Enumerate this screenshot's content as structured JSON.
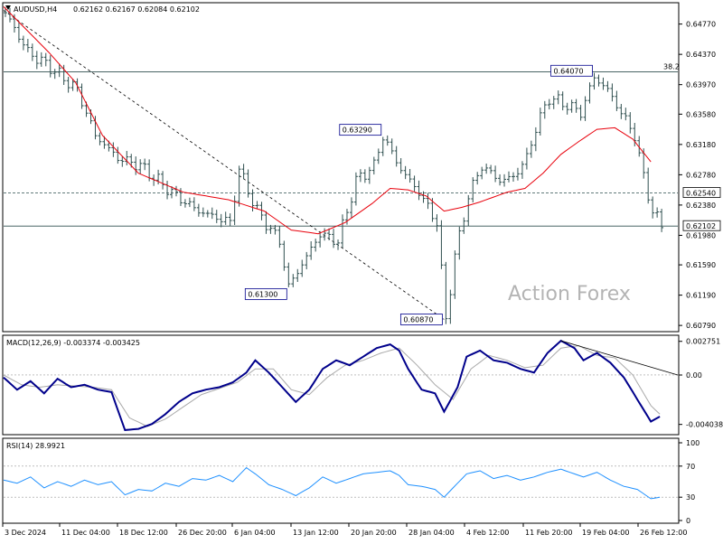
{
  "header": {
    "symbol": "AUDUSD,H4",
    "ohlc": "0.62162 0.62167 0.62084 0.62102"
  },
  "watermark": "Action Forex",
  "colors": {
    "price": "#2f4f4f",
    "ma": "#e8000b",
    "macd_main": "#00008b",
    "macd_signal": "#a9a9a9",
    "rsi": "#1e90ff",
    "level": "#2f4f4f",
    "border": "#000000"
  },
  "chart_data": [
    {
      "type": "candlestick",
      "title": "AUDUSD,H4",
      "ylim": [
        0.6072,
        0.6504
      ],
      "y_ticks": [
        "0.64770",
        "0.64370",
        "0.63970",
        "0.63580",
        "0.63180",
        "0.62780",
        "0.62380",
        "0.61980",
        "0.61590",
        "0.61190",
        "0.60790"
      ],
      "x_ticks": [
        "3 Dec 2024",
        "11 Dec 04:00",
        "18 Dec 12:00",
        "26 Dec 20:00",
        "6 Jan 04:00",
        "13 Jan 12:00",
        "20 Jan 20:00",
        "28 Jan 04:00",
        "4 Feb 12:00",
        "11 Feb 20:00",
        "19 Feb 04:00",
        "26 Feb 12:00"
      ],
      "price_path": [
        [
          0,
          0.6492
        ],
        [
          5,
          0.644
        ],
        [
          10,
          0.642
        ],
        [
          16,
          0.639
        ],
        [
          20,
          0.633
        ],
        [
          25,
          0.63
        ],
        [
          30,
          0.629
        ],
        [
          38,
          0.625
        ],
        [
          43,
          0.623
        ],
        [
          50,
          0.6215
        ],
        [
          52,
          0.6285
        ],
        [
          56,
          0.623
        ],
        [
          61,
          0.619
        ],
        [
          63,
          0.613
        ],
        [
          66,
          0.616
        ],
        [
          70,
          0.62
        ],
        [
          74,
          0.619
        ],
        [
          76,
          0.623
        ],
        [
          78,
          0.627
        ],
        [
          82,
          0.629
        ],
        [
          84,
          0.6329
        ],
        [
          88,
          0.6285
        ],
        [
          92,
          0.6255
        ],
        [
          96,
          0.6215
        ],
        [
          98,
          0.6087
        ],
        [
          100,
          0.617
        ],
        [
          103,
          0.625
        ],
        [
          106,
          0.629
        ],
        [
          110,
          0.627
        ],
        [
          113,
          0.6275
        ],
        [
          116,
          0.63
        ],
        [
          118,
          0.634
        ],
        [
          121,
          0.638
        ],
        [
          125,
          0.637
        ],
        [
          128,
          0.636
        ],
        [
          131,
          0.6407
        ],
        [
          134,
          0.639
        ],
        [
          137,
          0.636
        ],
        [
          140,
          0.633
        ],
        [
          142,
          0.6275
        ],
        [
          144,
          0.623
        ],
        [
          146,
          0.621
        ]
      ],
      "ma_path": [
        [
          0,
          0.65
        ],
        [
          10,
          0.644
        ],
        [
          16,
          0.64
        ],
        [
          22,
          0.633
        ],
        [
          30,
          0.628
        ],
        [
          40,
          0.6255
        ],
        [
          50,
          0.6245
        ],
        [
          58,
          0.623
        ],
        [
          64,
          0.6205
        ],
        [
          70,
          0.62
        ],
        [
          76,
          0.6215
        ],
        [
          82,
          0.624
        ],
        [
          86,
          0.626
        ],
        [
          90,
          0.6258
        ],
        [
          94,
          0.625
        ],
        [
          98,
          0.623
        ],
        [
          102,
          0.6235
        ],
        [
          106,
          0.6242
        ],
        [
          112,
          0.6255
        ],
        [
          116,
          0.626
        ],
        [
          120,
          0.628
        ],
        [
          124,
          0.6305
        ],
        [
          128,
          0.6322
        ],
        [
          132,
          0.6338
        ],
        [
          136,
          0.634
        ],
        [
          140,
          0.6325
        ],
        [
          144,
          0.6295
        ]
      ],
      "horizontal_lines": [
        {
          "value": 0.6414,
          "label": "38.2",
          "style": "solid"
        },
        {
          "value": 0.6254,
          "label": "0.62540",
          "style": "dashed"
        },
        {
          "value": 0.62102,
          "label": "0.62102",
          "style": "solid"
        }
      ],
      "trendlines": [
        {
          "from": [
            0,
            0.6495
          ],
          "to": [
            98,
            0.6087
          ],
          "style": "dashed"
        }
      ],
      "annotations": [
        {
          "text": "0.61300",
          "at": [
            63,
            0.613
          ]
        },
        {
          "text": "0.63290",
          "at": [
            84,
            0.6329
          ]
        },
        {
          "text": "0.60870",
          "at": [
            98,
            0.6087
          ]
        },
        {
          "text": "0.64070",
          "at": [
            131,
            0.6407
          ]
        }
      ]
    },
    {
      "type": "line",
      "title": "MACD(12,26,9) -0.003374 -0.003425",
      "ylim": [
        -0.0048,
        0.0031
      ],
      "y_ticks": [
        "0.002751",
        "0.00",
        "-0.004038"
      ],
      "series": [
        {
          "values": [
            [
              0,
              -0.0002
            ],
            [
              3,
              -0.0012
            ],
            [
              6,
              -0.0005
            ],
            [
              9,
              -0.0015
            ],
            [
              12,
              -0.0003
            ],
            [
              15,
              -0.001
            ],
            [
              18,
              -0.0008
            ],
            [
              21,
              -0.0012
            ],
            [
              24,
              -0.0014
            ],
            [
              27,
              -0.0045
            ],
            [
              30,
              -0.0044
            ],
            [
              33,
              -0.004
            ],
            [
              36,
              -0.0032
            ],
            [
              39,
              -0.0022
            ],
            [
              42,
              -0.0015
            ],
            [
              45,
              -0.0012
            ],
            [
              48,
              -0.001
            ],
            [
              51,
              -0.0006
            ],
            [
              54,
              0.0002
            ],
            [
              56,
              0.0012
            ],
            [
              59,
              0.0002
            ],
            [
              62,
              -0.001
            ],
            [
              65,
              -0.0022
            ],
            [
              68,
              -0.0012
            ],
            [
              71,
              0.0005
            ],
            [
              74,
              0.0012
            ],
            [
              77,
              0.0008
            ],
            [
              80,
              0.0015
            ],
            [
              83,
              0.0022
            ],
            [
              86,
              0.0025
            ],
            [
              88,
              0.002
            ],
            [
              90,
              0.0005
            ],
            [
              93,
              -0.0012
            ],
            [
              96,
              -0.0015
            ],
            [
              98,
              -0.003
            ],
            [
              101,
              -0.001
            ],
            [
              103,
              0.0015
            ],
            [
              106,
              0.002
            ],
            [
              109,
              0.0012
            ],
            [
              112,
              0.001
            ],
            [
              115,
              0.0005
            ],
            [
              118,
              0.0002
            ],
            [
              121,
              0.0018
            ],
            [
              124,
              0.0028
            ],
            [
              127,
              0.0022
            ],
            [
              129,
              0.0012
            ],
            [
              132,
              0.0018
            ],
            [
              135,
              0.001
            ],
            [
              138,
              -0.0002
            ],
            [
              141,
              -0.002
            ],
            [
              144,
              -0.0038
            ],
            [
              146,
              -0.0034
            ]
          ]
        },
        {
          "values": [
            [
              0,
              0.0
            ],
            [
              4,
              -0.0008
            ],
            [
              8,
              -0.001
            ],
            [
              12,
              -0.0008
            ],
            [
              16,
              -0.0009
            ],
            [
              20,
              -0.001
            ],
            [
              24,
              -0.0012
            ],
            [
              28,
              -0.0035
            ],
            [
              32,
              -0.0042
            ],
            [
              36,
              -0.0036
            ],
            [
              40,
              -0.0026
            ],
            [
              44,
              -0.0016
            ],
            [
              48,
              -0.0011
            ],
            [
              52,
              -0.0006
            ],
            [
              56,
              0.0005
            ],
            [
              60,
              0.0005
            ],
            [
              64,
              -0.0012
            ],
            [
              68,
              -0.0016
            ],
            [
              72,
              -0.0002
            ],
            [
              76,
              0.0008
            ],
            [
              80,
              0.0012
            ],
            [
              84,
              0.0018
            ],
            [
              88,
              0.0022
            ],
            [
              92,
              0.0008
            ],
            [
              96,
              -0.0008
            ],
            [
              100,
              -0.002
            ],
            [
              104,
              0.0005
            ],
            [
              108,
              0.0016
            ],
            [
              112,
              0.0012
            ],
            [
              116,
              0.0006
            ],
            [
              120,
              0.0008
            ],
            [
              124,
              0.0022
            ],
            [
              128,
              0.0024
            ],
            [
              132,
              0.0016
            ],
            [
              136,
              0.0014
            ],
            [
              140,
              0.0
            ],
            [
              144,
              -0.0025
            ],
            [
              146,
              -0.0032
            ]
          ]
        }
      ],
      "trendlines": [
        {
          "from": [
            124,
            0.0028
          ],
          "to": [
            150,
            0.0
          ],
          "style": "solid"
        }
      ]
    },
    {
      "type": "line",
      "title": "RSI(14) 28.9921",
      "ylim": [
        0,
        100
      ],
      "y_ticks": [
        "100",
        "70",
        "30",
        "0"
      ],
      "levels": [
        70,
        30
      ],
      "series": [
        {
          "values": [
            [
              0,
              52
            ],
            [
              3,
              48
            ],
            [
              6,
              56
            ],
            [
              9,
              42
            ],
            [
              12,
              50
            ],
            [
              15,
              44
            ],
            [
              18,
              52
            ],
            [
              21,
              46
            ],
            [
              24,
              50
            ],
            [
              27,
              33
            ],
            [
              30,
              40
            ],
            [
              33,
              38
            ],
            [
              36,
              48
            ],
            [
              39,
              44
            ],
            [
              42,
              54
            ],
            [
              45,
              52
            ],
            [
              48,
              58
            ],
            [
              51,
              50
            ],
            [
              54,
              68
            ],
            [
              56,
              60
            ],
            [
              59,
              46
            ],
            [
              62,
              40
            ],
            [
              65,
              32
            ],
            [
              68,
              42
            ],
            [
              71,
              56
            ],
            [
              74,
              48
            ],
            [
              77,
              54
            ],
            [
              80,
              60
            ],
            [
              83,
              62
            ],
            [
              86,
              64
            ],
            [
              88,
              58
            ],
            [
              90,
              46
            ],
            [
              93,
              44
            ],
            [
              96,
              40
            ],
            [
              98,
              30
            ],
            [
              101,
              48
            ],
            [
              103,
              60
            ],
            [
              106,
              64
            ],
            [
              109,
              54
            ],
            [
              112,
              58
            ],
            [
              115,
              52
            ],
            [
              118,
              56
            ],
            [
              121,
              62
            ],
            [
              124,
              66
            ],
            [
              127,
              60
            ],
            [
              129,
              56
            ],
            [
              132,
              62
            ],
            [
              135,
              52
            ],
            [
              138,
              44
            ],
            [
              141,
              40
            ],
            [
              144,
              28
            ],
            [
              146,
              30
            ]
          ]
        }
      ]
    }
  ]
}
